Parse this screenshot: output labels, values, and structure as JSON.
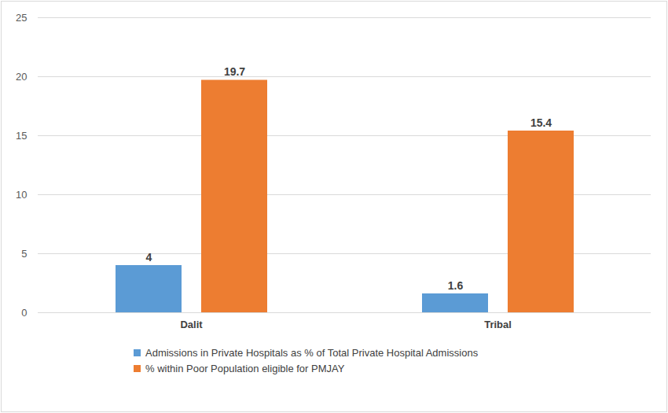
{
  "chart_data": {
    "type": "bar",
    "categories": [
      "Dalit",
      "Tribal"
    ],
    "series": [
      {
        "name": "Admissions in Private Hospitals as % of Total Private Hospital Admissions",
        "color": "#5b9bd5",
        "values": [
          4,
          1.6
        ]
      },
      {
        "name": "% within Poor Population eligible for PMJAY",
        "color": "#ed7d31",
        "values": [
          19.7,
          15.4
        ]
      }
    ],
    "ylim": [
      0,
      25
    ],
    "yticks": [
      0,
      5,
      10,
      15,
      20,
      25
    ],
    "grid": true,
    "data_labels": true,
    "legend": "bottom"
  }
}
